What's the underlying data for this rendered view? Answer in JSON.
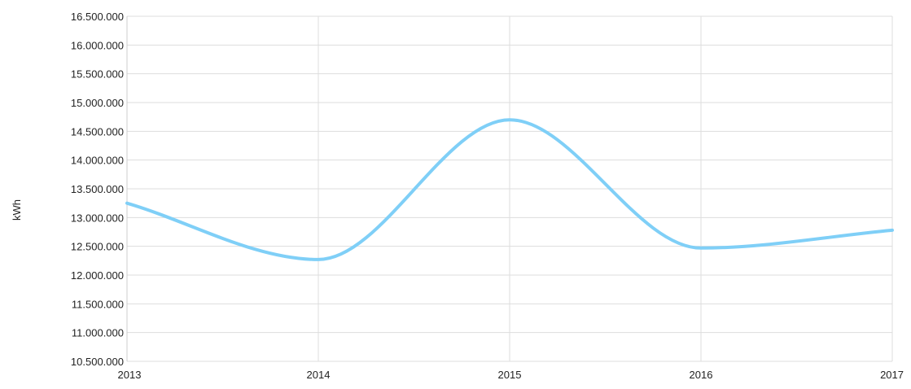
{
  "chart_data": {
    "type": "line",
    "title": "",
    "xlabel": "",
    "ylabel": "kWh",
    "x": [
      "2013",
      "2014",
      "2015",
      "2016",
      "2017"
    ],
    "series": [
      {
        "values": [
          13250000,
          12270000,
          14700000,
          12470000,
          12780000
        ]
      }
    ],
    "ylim": [
      10500000,
      16500000
    ],
    "y_ticks": [
      "10.500.000",
      "11.000.000",
      "11.500.000",
      "12.000.000",
      "12.500.000",
      "13.000.000",
      "13.500.000",
      "14.000.000",
      "14.500.000",
      "15.000.000",
      "15.500.000",
      "16.000.000",
      "16.500.000"
    ],
    "y_tick_values": [
      10500000,
      11000000,
      11500000,
      12000000,
      12500000,
      13000000,
      13500000,
      14000000,
      14500000,
      15000000,
      15500000,
      16000000,
      16500000
    ],
    "grid": true,
    "line_color": "#7fcff7",
    "grid_color": "#dddddd"
  }
}
